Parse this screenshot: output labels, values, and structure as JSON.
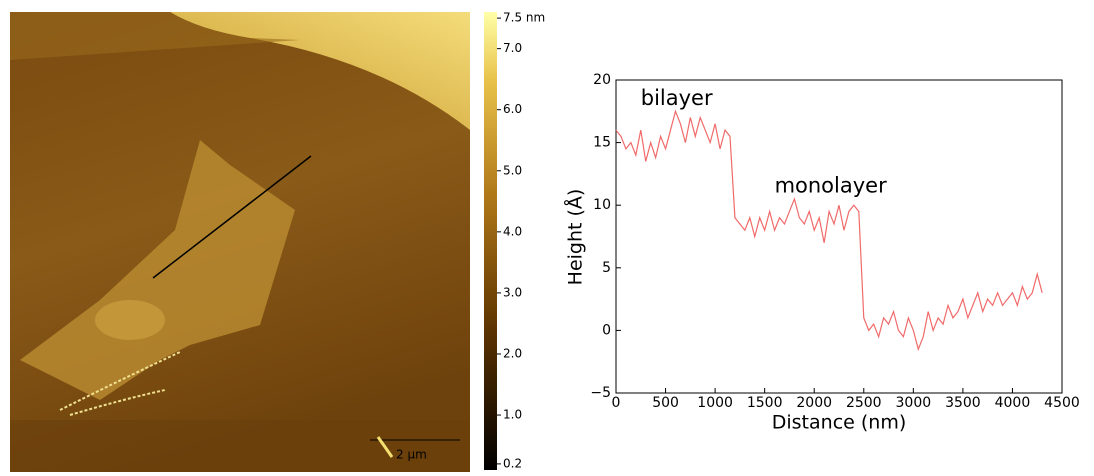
{
  "afm_image": {
    "scale_bar": "2 µm",
    "colorbar": {
      "lim": [
        0.1,
        7.6
      ],
      "ticks": [
        {
          "value": 7.5,
          "label": "7.5 nm"
        },
        {
          "value": 7,
          "label": "7.0"
        },
        {
          "value": 6,
          "label": "6.0"
        },
        {
          "value": 5,
          "label": "5.0"
        },
        {
          "value": 4,
          "label": "4.0"
        },
        {
          "value": 3,
          "label": "3.0"
        },
        {
          "value": 2,
          "label": "2.0"
        },
        {
          "value": 1,
          "label": "1.0"
        },
        0.2
      ]
    }
  },
  "chart_data": {
    "type": "line",
    "xlabel": "Distance (nm)",
    "ylabel": "Height (Å)",
    "annotations": [
      {
        "text": "bilayer",
        "x": 250,
        "y": 18.5
      },
      {
        "text": "monolayer",
        "x": 1600,
        "y": 11.5
      }
    ],
    "xlim": [
      0,
      4500
    ],
    "ylim": [
      -5,
      20
    ],
    "xticks": [
      0,
      500,
      1000,
      1500,
      2000,
      2500,
      3000,
      3500,
      4000,
      4500
    ],
    "yticks": [
      {
        "value": -5,
        "label": "−5"
      },
      0,
      5,
      10,
      15,
      20
    ],
    "color": "#f06a6a",
    "x": [
      0,
      50,
      100,
      150,
      200,
      250,
      300,
      350,
      400,
      450,
      500,
      550,
      600,
      650,
      700,
      750,
      800,
      850,
      900,
      950,
      1000,
      1050,
      1100,
      1150,
      1200,
      1250,
      1300,
      1350,
      1400,
      1450,
      1500,
      1550,
      1600,
      1650,
      1700,
      1750,
      1800,
      1850,
      1900,
      1950,
      2000,
      2050,
      2100,
      2150,
      2200,
      2250,
      2300,
      2350,
      2400,
      2450,
      2500,
      2550,
      2600,
      2650,
      2700,
      2750,
      2800,
      2850,
      2900,
      2950,
      3000,
      3050,
      3100,
      3150,
      3200,
      3250,
      3300,
      3350,
      3400,
      3450,
      3500,
      3550,
      3600,
      3650,
      3700,
      3750,
      3800,
      3850,
      3900,
      3950,
      4000,
      4050,
      4100,
      4150,
      4200,
      4250,
      4300
    ],
    "values": [
      16,
      15.5,
      14.5,
      15,
      14,
      16,
      13.5,
      15,
      13.8,
      15.5,
      14.5,
      16,
      17.5,
      16.5,
      15,
      17,
      15.5,
      17,
      16,
      15,
      16.5,
      14.5,
      16,
      15.5,
      9,
      8.5,
      8,
      9,
      7.5,
      9,
      8,
      9.5,
      8,
      9,
      8.5,
      9.5,
      10.5,
      9,
      8.5,
      9.5,
      8,
      9,
      7,
      9.5,
      8.5,
      10,
      8,
      9.5,
      10,
      9.5,
      1,
      0,
      0.5,
      -0.5,
      1,
      0.5,
      1.5,
      0,
      -0.5,
      1,
      0,
      -1.5,
      -0.5,
      1.5,
      0,
      1,
      0.5,
      2,
      1,
      1.5,
      2.5,
      1,
      2,
      3,
      1.5,
      2.5,
      2,
      3,
      2,
      2.5,
      3,
      2,
      3.5,
      2.5,
      3,
      4.5,
      3
    ]
  }
}
